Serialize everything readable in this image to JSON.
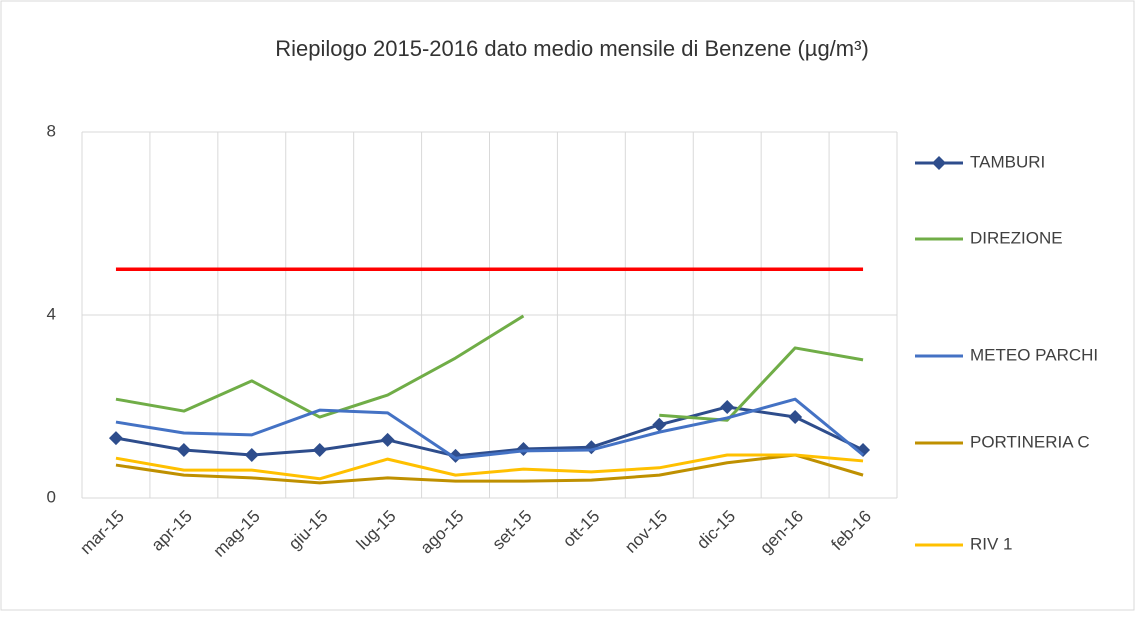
{
  "chart_data": {
    "type": "line",
    "title": "Riepilogo 2015-2016 dato medio mensile di Benzene (µg/m³)",
    "categories": [
      "mar-15",
      "apr-15",
      "mag-15",
      "giu-15",
      "lug-15",
      "ago-15",
      "set-15",
      "ott-15",
      "nov-15",
      "dic-15",
      "gen-16",
      "feb-16"
    ],
    "series": [
      {
        "name": "TAMBURI",
        "color": "#2e4d8c",
        "marker": "diamond",
        "values": [
          1.31,
          1.05,
          0.94,
          1.05,
          1.27,
          0.92,
          1.07,
          1.11,
          1.6,
          1.99,
          1.77,
          1.05
        ]
      },
      {
        "name": "DIREZIONE",
        "color": "#70ad47",
        "values": [
          2.16,
          1.9,
          2.56,
          1.77,
          2.25,
          3.06,
          3.98,
          null,
          1.81,
          1.7,
          3.28,
          3.02
        ]
      },
      {
        "name": "METEO PARCHI",
        "color": "#4472c4",
        "values": [
          1.66,
          1.42,
          1.38,
          1.92,
          1.86,
          0.87,
          1.03,
          1.05,
          1.44,
          1.75,
          2.16,
          0.94
        ]
      },
      {
        "name": "PORTINERIA C",
        "color": "#bf9000",
        "values": [
          0.72,
          0.5,
          0.44,
          0.33,
          0.44,
          0.37,
          0.37,
          0.39,
          0.5,
          0.77,
          0.94,
          0.5
        ]
      },
      {
        "name": "RIV 1",
        "color": "#ffc000",
        "values": [
          0.87,
          0.61,
          0.61,
          0.42,
          0.85,
          0.5,
          0.63,
          0.57,
          0.66,
          0.94,
          0.94,
          0.81
        ]
      }
    ],
    "reference_line": {
      "value": 5,
      "color": "#ff0000"
    },
    "ylim": [
      0,
      8
    ],
    "yticks": [
      0,
      4,
      8
    ],
    "grid": true
  }
}
